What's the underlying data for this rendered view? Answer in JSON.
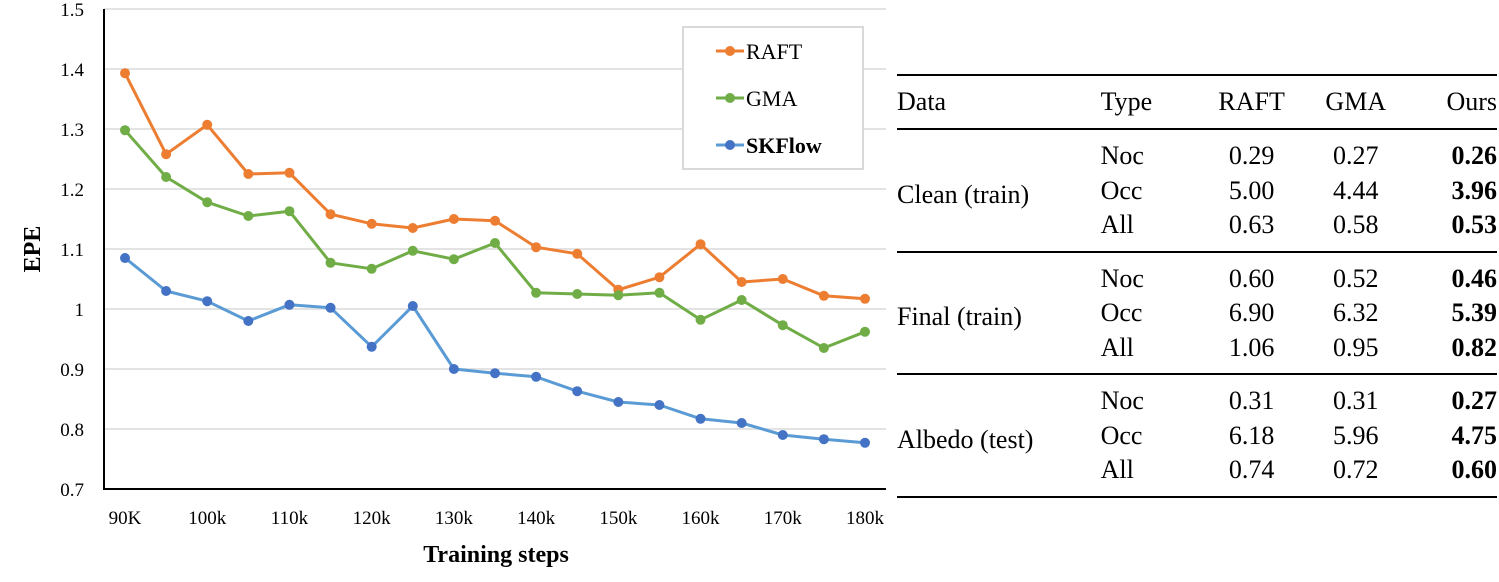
{
  "chart_data": {
    "type": "line",
    "title": "",
    "xlabel": "Training steps",
    "ylabel": "EPE",
    "x": [
      "90K",
      "95k",
      "100k",
      "105k",
      "110k",
      "115k",
      "120k",
      "125k",
      "130k",
      "135k",
      "140k",
      "145k",
      "150k",
      "155k",
      "160k",
      "165k",
      "170k",
      "175k",
      "180k"
    ],
    "x_tick_labels": [
      "90K",
      "100k",
      "110k",
      "120k",
      "130k",
      "140k",
      "150k",
      "160k",
      "170k",
      "180k"
    ],
    "y_tick_labels": [
      "0.7",
      "0.8",
      "0.9",
      "1",
      "1.1",
      "1.2",
      "1.3",
      "1.4",
      "1.5"
    ],
    "ylim": [
      0.7,
      1.5
    ],
    "grid": "horizontal",
    "legend_position": "top-right",
    "series": [
      {
        "name": "RAFT",
        "color": "#ED7D31",
        "marker_color": "#ED7D31",
        "bold": false,
        "values": [
          1.393,
          1.258,
          1.307,
          1.225,
          1.227,
          1.158,
          1.142,
          1.135,
          1.15,
          1.147,
          1.103,
          1.092,
          1.032,
          1.053,
          1.108,
          1.045,
          1.05,
          1.022,
          1.017
        ]
      },
      {
        "name": "GMA",
        "color": "#70AD47",
        "marker_color": "#70AD47",
        "bold": false,
        "values": [
          1.298,
          1.22,
          1.178,
          1.155,
          1.163,
          1.077,
          1.067,
          1.097,
          1.083,
          1.11,
          1.027,
          1.025,
          1.023,
          1.027,
          0.982,
          1.015,
          0.973,
          0.935,
          0.962
        ]
      },
      {
        "name": "SKFlow",
        "color": "#5B9BD5",
        "marker_color": "#4472C4",
        "bold": true,
        "values": [
          1.085,
          1.03,
          1.013,
          0.98,
          1.007,
          1.002,
          0.937,
          1.005,
          0.9,
          0.893,
          0.887,
          0.863,
          0.845,
          0.84,
          0.817,
          0.81,
          0.79,
          0.783,
          0.777
        ]
      }
    ]
  },
  "table": {
    "headers": {
      "data": "Data",
      "type": "Type",
      "raft": "RAFT",
      "gma": "GMA",
      "ours": "Ours"
    },
    "groups": [
      {
        "label": "Clean (train)",
        "rows": [
          {
            "type": "Noc",
            "raft": "0.29",
            "gma": "0.27",
            "ours": "0.26"
          },
          {
            "type": "Occ",
            "raft": "5.00",
            "gma": "4.44",
            "ours": "3.96"
          },
          {
            "type": "All",
            "raft": "0.63",
            "gma": "0.58",
            "ours": "0.53"
          }
        ]
      },
      {
        "label": "Final (train)",
        "rows": [
          {
            "type": "Noc",
            "raft": "0.60",
            "gma": "0.52",
            "ours": "0.46"
          },
          {
            "type": "Occ",
            "raft": "6.90",
            "gma": "6.32",
            "ours": "5.39"
          },
          {
            "type": "All",
            "raft": "1.06",
            "gma": "0.95",
            "ours": "0.82"
          }
        ]
      },
      {
        "label": "Albedo (test)",
        "rows": [
          {
            "type": "Noc",
            "raft": "0.31",
            "gma": "0.31",
            "ours": "0.27"
          },
          {
            "type": "Occ",
            "raft": "6.18",
            "gma": "5.96",
            "ours": "4.75"
          },
          {
            "type": "All",
            "raft": "0.74",
            "gma": "0.72",
            "ours": "0.60"
          }
        ]
      }
    ]
  }
}
